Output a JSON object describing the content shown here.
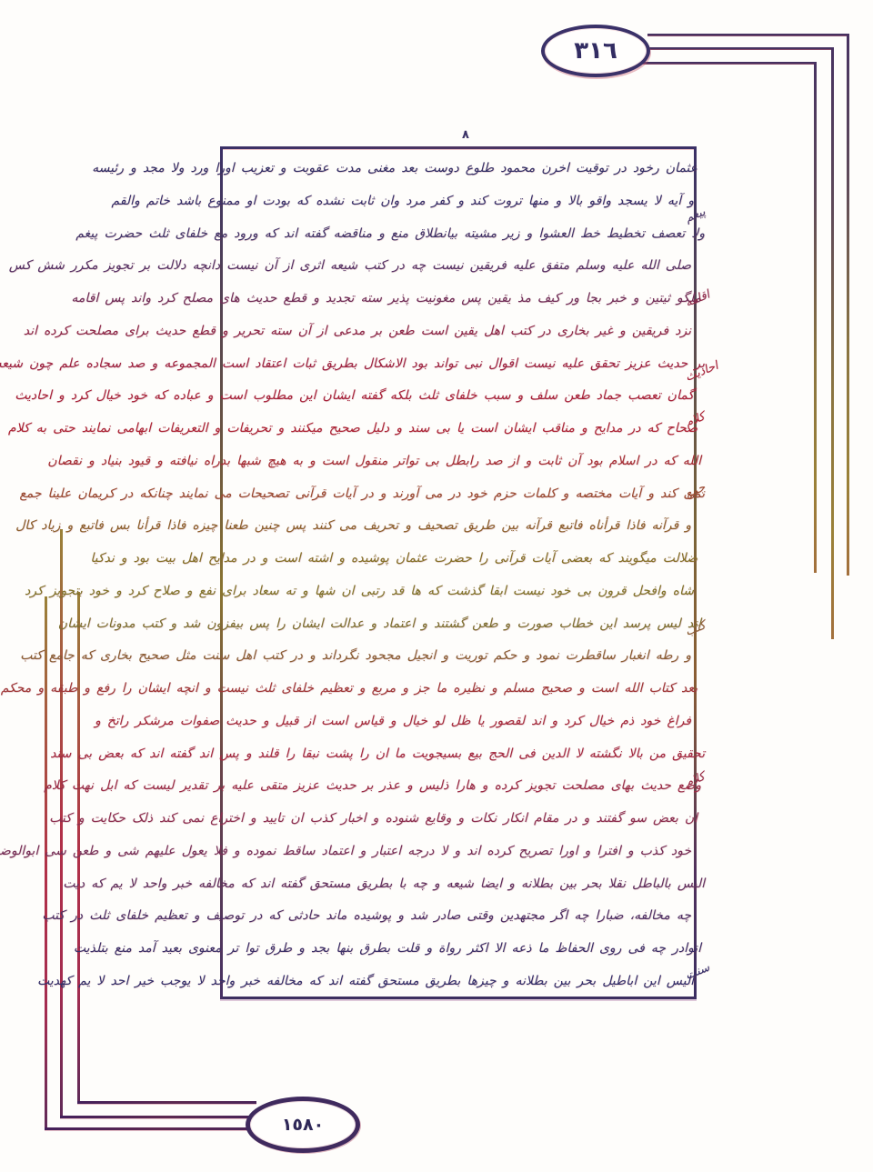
{
  "page": {
    "top_page_number": "٣١٦",
    "bottom_page_number": "١٥٨٠",
    "top_margin_mark": "٨"
  },
  "text_block": {
    "lines": [
      "عثمان رخود در توقیت اخرن محمود طلوع دوست بعد مغنی مدت عقوبت و تعزیب اورا ورد ولا مجد و رئیسه",
      "و آیه لا یسجد واقو بالا و منها تروت کند و کفر مرد وان ثابت نشده که بودت او ممنوع باشد خاتم والقم",
      "ولا تعصف تخطیط خط العشوا و زیر مشیته بیانطلاق منع و مناقضه گفته اند که ورود مع خلفای ثلث حضرت پیغم",
      "صلی الله علیه وسلم متفق علیه فریقین نیست چه در کتب شیعه اثری از آن نیست دانچه دلالت بر تجویز مکرر شش کس",
      "ملگو ثیتین و خبر بجا ور کیف مذ یقین پس مغونیت پذیر سته تجدید و قطع حدیث های مصلح کرد واند پس اقامه",
      "نزد فریقین و غیر بخاری در کتب اهل یقین است طعن بر مدعی از آن سته تحریر و قطع حدیث برای مصلحت کرده اند",
      "بر حدیث عزیز تحقق علیه نیست اقوال نبی تواند بود الاشکال بطریق ثبات اعتقاد است المجموعه و صد سجاده علم چون شیعه دار",
      "گمان تعصب جماد طعن سلف و سبب خلفای ثلث بلکه گفته ایشان این مطلوب است و عباده که خود خیال کرد و احادیث",
      "صحاح که در مدایح و مناقب ایشان است یا بی سند و دلیل صحیح میکنند و تحریفات و التعریفات ابهامی نمایند حتی به کلام",
      "الله که در اسلام بود آن ثابت و از صد رابطل بی تواتر منقول است و به هیچ شبها بدراه نیافته و قیود بنیاد و نقصان",
      "نمی کند و آیات مختصه و کلمات حزم خود در می آورند و در آیات قرآنی تصحیحات می نمایند چنانکه در کریمان علینا جمع",
      "و قرآنه فاذا قرأناه فاتبع قرآنه بین طریق تصحیف و تحریف می کنند پس چنین طعنا چیزه فاذا قرأنا بس فاتبع و زیاد کال",
      "ضلالت میگویند که بعضی آیات قرآنی را حضرت عثمان پوشیده و اشته است و در مدایح اهل بیت بود و ندکیا",
      "شاه وافحل قرون بی خود نیست ابقا گذشت که ها قد رتبی ان شها و ته سعاد برای نفع و صلاح کرد و خود بتجویز کرد",
      "اند لیس پرسد این خطاب صورت و طعن گشتند و اعتماد و عدالت ایشان را پس بیفزون شد و کتب مدونات ایشان",
      "و رطه انغبار ساقطرت نمود و حکم توریت و انجیل مجحود نگرداند و در کتب اهل سنت مثل صحیح بخاری که جامع کتب",
      "بعد کتاب الله است و صحیح مسلم و نظیره ما جز و مربع و تعظیم خلفای ثلث نیست و انچه ایشان را رفع و طبقه و محکم",
      "فراغ خود ذم خیال کرد و اند لقصور یا ظل لو خیال و قیاس است از قبیل و حدیث صفوات مرشکر راتخ و",
      "تحقیق من بالا نگشته لا الدین فی الحج بیع بسیجویت ما ان را پشت نبقا را قلند و پس اند گفته اند که بعض بی سند",
      "وضع حدیث بهای مصلحت تجویز کرده و هارا ذلیس و عذر بر حدیث عزیز متقی علیه بر تقدیر لیست که ابل نهت کلام",
      "ان بعض سو گفتند و در مقام انکار نکات و وقایع شنوده و اخبار کذب ان تایید و اختراع نمی کند ذلک حکایت و کتب",
      "خود کذب و افترا و اورا تصریح کرده اند و لا درجه اعتبار و اعتماد ساقط نموده و فلا یعول علیهم شی و طعن سی ابوالوضیع",
      "الیس بالباطل نقلا بحر بین بطلانه و ایضا شیعه و چه با بطریق مستحق گفته اند که مخالفه خبر واحد لا یم که دیت",
      "چه مخالفه، ضبارا چه اگر مجتهدین وقتی صادر شد و پوشیده ماند حادثی که در توصیف و تعظیم خلفای ثلث در کتب",
      "انوادر چه فی روی الحفاظ ما ذعه الا اکثر رواة و قلت بطرق بنها بجد و طرق توا تر معنوی بعید آمد منع بتلذیت",
      "الیس این اباطیل بحر بین بطلانه و چیزها بطریق مستحق گفته اند که مخالفه خبر واحد لا یوجب خیر احد لا یم کهدیت"
    ],
    "line_colors": [
      "#333066",
      "#363069",
      "#413468",
      "#553264",
      "#702e58",
      "#8d2848",
      "#9e2340",
      "#a8233a",
      "#ad2536",
      "#a62e34",
      "#9a4a30",
      "#8c602c",
      "#857128",
      "#81742a",
      "#7d7030",
      "#8a5e34",
      "#a03838",
      "#a62b3c",
      "#a42a40",
      "#9a2c46",
      "#8c2f50",
      "#763058",
      "#60305e",
      "#4c3064",
      "#3c3168",
      "#34306a"
    ],
    "margin_words": [
      "پیغم",
      "اقامه",
      "احادیث",
      "کلام",
      "جمع",
      "کتب",
      "کلام",
      "سنت"
    ]
  },
  "colors": {
    "frame_border": "#3a3066",
    "ornament_navy": "#443060",
    "ornament_olive": "#9a8138",
    "ornament_crimson": "#b13048",
    "ornament_purple": "#4a2458",
    "top_number_color": "#322c62",
    "bottom_number_color": "#2f2858",
    "page_background": "#fefdfb"
  }
}
